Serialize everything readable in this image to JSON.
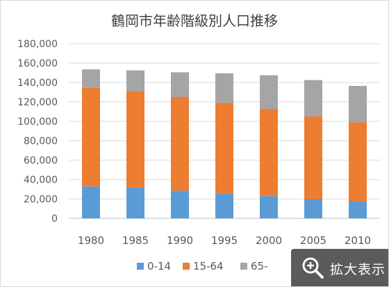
{
  "chart_data": {
    "type": "bar",
    "stacked": true,
    "title": "鶴岡市年齢階級別人口推移",
    "categories": [
      "1980",
      "1985",
      "1990",
      "1995",
      "2000",
      "2005",
      "2010"
    ],
    "series": [
      {
        "name": "0-14",
        "color": "#5b9bd5",
        "values": [
          33000,
          31500,
          28500,
          25500,
          23000,
          20000,
          17500
        ]
      },
      {
        "name": "15-64",
        "color": "#ed7d31",
        "values": [
          101500,
          99500,
          96500,
          93500,
          89500,
          85000,
          81500
        ]
      },
      {
        "name": "65-",
        "color": "#a5a5a5",
        "values": [
          19000,
          21500,
          25500,
          30500,
          35000,
          37500,
          37500
        ]
      }
    ],
    "ylim": [
      0,
      180000
    ],
    "yticks": [
      "0",
      "20,000",
      "40,000",
      "60,000",
      "80,000",
      "100,000",
      "120,000",
      "140,000",
      "160,000",
      "180,000"
    ],
    "grid": true,
    "legend": "bottom"
  },
  "zoom_button": {
    "label": "拡大表示",
    "icon": "zoom-in-icon"
  }
}
